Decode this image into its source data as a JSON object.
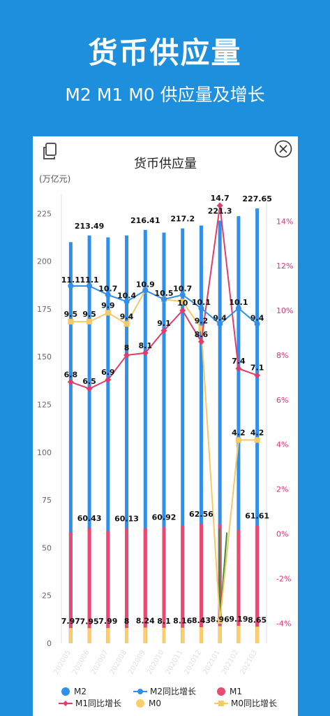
{
  "header": {
    "title": "货币供应量",
    "subtitle": "M2 M1 M0 供应量及增长"
  },
  "card": {
    "chart_title": "货币供应量",
    "unit": "(万亿元)"
  },
  "colors": {
    "background": "#1d8fdc",
    "m2": "#2f8fea",
    "m2_yoy": "#2f8fea",
    "m1": "#e84a72",
    "m1_yoy": "#e03e6a",
    "m0": "#f8cf6b",
    "m0_yoy": "#f6c866",
    "spike_line": "#2f8f3f"
  },
  "chart_data": {
    "type": "bar",
    "categories": [
      "202005",
      "202006",
      "202007",
      "202008",
      "202009",
      "202010",
      "202011",
      "202012",
      "202101",
      "202102",
      "202103"
    ],
    "ylim_left": [
      0,
      235
    ],
    "yticks_left": [
      0,
      25,
      50,
      75,
      100,
      125,
      150,
      175,
      200,
      225
    ],
    "ylim_right": [
      -4.9,
      15.2
    ],
    "yticks_right": [
      -4,
      -2,
      0,
      2,
      4,
      6,
      8,
      10,
      12,
      14
    ],
    "ytick_labels_right": [
      "-4%",
      "-2%",
      "0%",
      "2%",
      "4%",
      "6%",
      "8%",
      "10%",
      "12%",
      "14%"
    ],
    "legend_position": "bottom",
    "series": [
      {
        "name": "M2",
        "kind": "bar",
        "axis": "left",
        "values": [
          210,
          213.49,
          212.5,
          213.5,
          216.41,
          215,
          217.2,
          218.7,
          221.3,
          223.6,
          227.65
        ],
        "labels": [
          "",
          "213.49",
          "",
          "",
          "216.41",
          "",
          "217.2",
          "",
          "221.3",
          "",
          "227.65"
        ]
      },
      {
        "name": "M1",
        "kind": "bar",
        "axis": "left",
        "values": [
          58.2,
          60.43,
          58.8,
          60.13,
          60.2,
          60.92,
          61.6,
          62.56,
          62.3,
          59.4,
          61.61
        ],
        "labels": [
          "",
          "60.43",
          "",
          "60.13",
          "",
          "60.92",
          "",
          "62.56",
          "",
          "",
          "61.61"
        ]
      },
      {
        "name": "M0",
        "kind": "bar",
        "axis": "left",
        "values": [
          7.97,
          7.95,
          7.99,
          8,
          8.24,
          8.1,
          8.16,
          8.43,
          8.96,
          9.19,
          8.65
        ],
        "labels": [
          "7.97",
          "7.95",
          "7.99",
          "8",
          "8.24",
          "8.1",
          "8.16",
          "8.43",
          "8.96",
          "9.19",
          "8.65"
        ]
      },
      {
        "name": "M2同比增长",
        "kind": "line",
        "axis": "right",
        "values": [
          11.1,
          11.1,
          10.7,
          10.4,
          10.9,
          10.5,
          10.7,
          10.1,
          9.4,
          10.1,
          9.4
        ],
        "labels": [
          "11.1",
          "11.1",
          "10.7",
          "10.4",
          "10.9",
          "10.5",
          "10.7",
          "10.1",
          "9.4",
          "10.1",
          "9.4"
        ]
      },
      {
        "name": "M1同比增长",
        "kind": "line",
        "axis": "right",
        "values": [
          6.8,
          6.5,
          6.9,
          8,
          8.1,
          9.1,
          10,
          8.6,
          14.7,
          7.4,
          7.1
        ],
        "labels": [
          "6.8",
          "6.5",
          "6.9",
          "8",
          "8.1",
          "9.1",
          "10",
          "8.6",
          "14.7",
          "7.4",
          "7.1"
        ]
      },
      {
        "name": "M0同比增长",
        "kind": "line",
        "axis": "right",
        "values": [
          9.5,
          9.5,
          9.9,
          9.4,
          10.9,
          10.5,
          10.4,
          9.2,
          -3.9,
          4.2,
          4.2
        ],
        "labels": [
          "9.5",
          "9.5",
          "9.9",
          "9.4",
          "",
          "",
          "",
          "9.2",
          "",
          "4.2",
          "4.2"
        ]
      }
    ],
    "legend": [
      {
        "name": "M2",
        "marker": "dot"
      },
      {
        "name": "M2同比增长",
        "marker": "line-dot"
      },
      {
        "name": "M1",
        "marker": "dot"
      },
      {
        "name": "M1同比增长",
        "marker": "line-diamond"
      },
      {
        "name": "M0",
        "marker": "dot"
      },
      {
        "name": "M0同比增长",
        "marker": "line-square"
      }
    ]
  }
}
